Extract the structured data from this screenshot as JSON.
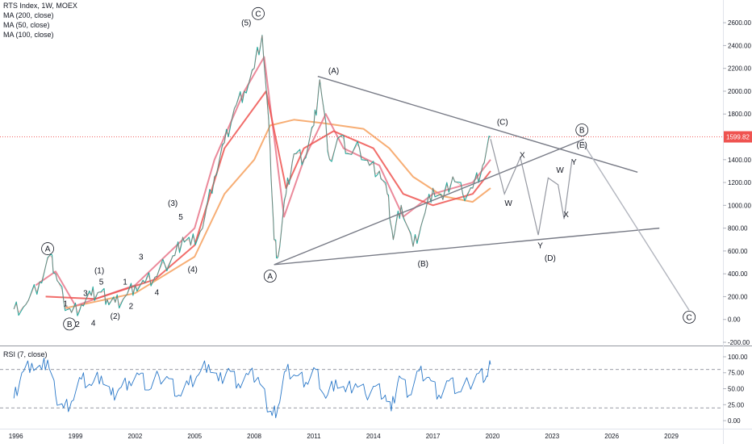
{
  "chart_data": [
    {
      "type": "line",
      "title": "RTS Index, 1W, MOEX",
      "indicators": [
        "MA (200, close)",
        "MA (50, close)",
        "MA (100, close)"
      ],
      "ylim": [
        -200,
        2700
      ],
      "y_ticks": [
        "2600.00",
        "2400.00",
        "2200.00",
        "2000.00",
        "1800.00",
        "1400.00",
        "1200.00",
        "1000.00",
        "800.00",
        "600.00",
        "400.00",
        "200.00",
        "0.00",
        "-200.00"
      ],
      "x_ticks": [
        "1996",
        "1999",
        "2002",
        "2005",
        "2008",
        "2011",
        "2014",
        "2017",
        "2020",
        "2023",
        "2026",
        "2029"
      ],
      "xlim": [
        1995.2,
        2031.6
      ],
      "current_price": "1599.82",
      "price_line_color": "#ef5350",
      "price_series": [
        [
          1995.9,
          90
        ],
        [
          1996.5,
          130
        ],
        [
          1997.2,
          330
        ],
        [
          1997.7,
          560
        ],
        [
          1998.0,
          400
        ],
        [
          1998.4,
          170
        ],
        [
          1998.8,
          60
        ],
        [
          1999.3,
          130
        ],
        [
          1999.8,
          210
        ],
        [
          2000.2,
          240
        ],
        [
          2000.6,
          175
        ],
        [
          2001.0,
          150
        ],
        [
          2001.5,
          200
        ],
        [
          2002.0,
          300
        ],
        [
          2002.5,
          320
        ],
        [
          2003.0,
          370
        ],
        [
          2003.5,
          480
        ],
        [
          2004.0,
          560
        ],
        [
          2004.4,
          720
        ],
        [
          2004.8,
          650
        ],
        [
          2005.4,
          800
        ],
        [
          2006.0,
          1250
        ],
        [
          2006.5,
          1550
        ],
        [
          2007.0,
          1850
        ],
        [
          2007.5,
          2000
        ],
        [
          2008.0,
          2200
        ],
        [
          2008.4,
          2490
        ],
        [
          2008.8,
          1500
        ],
        [
          2009.0,
          700
        ],
        [
          2009.2,
          550
        ],
        [
          2009.6,
          1100
        ],
        [
          2010.0,
          1450
        ],
        [
          2010.5,
          1400
        ],
        [
          2011.0,
          1700
        ],
        [
          2011.3,
          2100
        ],
        [
          2011.8,
          1400
        ],
        [
          2012.3,
          1600
        ],
        [
          2012.8,
          1450
        ],
        [
          2013.3,
          1500
        ],
        [
          2013.8,
          1350
        ],
        [
          2014.3,
          1300
        ],
        [
          2014.7,
          1100
        ],
        [
          2015.0,
          700
        ],
        [
          2015.4,
          1000
        ],
        [
          2016.0,
          640
        ],
        [
          2016.5,
          880
        ],
        [
          2017.0,
          1150
        ],
        [
          2017.5,
          1050
        ],
        [
          2018.0,
          1250
        ],
        [
          2018.5,
          1100
        ],
        [
          2019.0,
          1150
        ],
        [
          2019.5,
          1350
        ],
        [
          2019.9,
          1600
        ]
      ],
      "ma_series": [
        {
          "name": "MA (200, close)",
          "color": "#f6a05d",
          "values": [
            [
              1998.5,
              100
            ],
            [
              2002.0,
              230
            ],
            [
              2005.0,
              550
            ],
            [
              2006.5,
              1100
            ],
            [
              2008.0,
              1400
            ],
            [
              2008.8,
              1700
            ],
            [
              2010.0,
              1750
            ],
            [
              2011.5,
              1720
            ],
            [
              2013.5,
              1670
            ],
            [
              2014.8,
              1500
            ],
            [
              2016.0,
              1250
            ],
            [
              2017.5,
              1080
            ],
            [
              2019.0,
              1030
            ],
            [
              2019.9,
              1150
            ]
          ]
        },
        {
          "name": "MA (50, close)",
          "color": "#e8768a",
          "values": [
            [
              1997.0,
              300
            ],
            [
              1998.0,
              420
            ],
            [
              1999.0,
              120
            ],
            [
              2002.0,
              300
            ],
            [
              2005.0,
              800
            ],
            [
              2006.0,
              1400
            ],
            [
              2007.5,
              2000
            ],
            [
              2008.5,
              2300
            ],
            [
              2009.5,
              900
            ],
            [
              2010.5,
              1400
            ],
            [
              2011.6,
              1800
            ],
            [
              2012.5,
              1500
            ],
            [
              2014.3,
              1350
            ],
            [
              2015.5,
              900
            ],
            [
              2017.0,
              1100
            ],
            [
              2019.0,
              1200
            ],
            [
              2019.9,
              1400
            ]
          ]
        },
        {
          "name": "MA (100, close)",
          "color": "#ef5350",
          "values": [
            [
              1997.5,
              200
            ],
            [
              2000.0,
              180
            ],
            [
              2003.0,
              350
            ],
            [
              2005.0,
              650
            ],
            [
              2006.5,
              1500
            ],
            [
              2008.6,
              2000
            ],
            [
              2009.6,
              1150
            ],
            [
              2010.5,
              1500
            ],
            [
              2012.0,
              1650
            ],
            [
              2014.0,
              1500
            ],
            [
              2015.5,
              1100
            ],
            [
              2017.0,
              1000
            ],
            [
              2019.0,
              1100
            ],
            [
              2019.9,
              1300
            ]
          ]
        }
      ],
      "trendlines": [
        {
          "color": "#787b86",
          "from": [
            2011.2,
            2130
          ],
          "to": [
            2027.3,
            1290
          ]
        },
        {
          "color": "#787b86",
          "from": [
            2009.0,
            480
          ],
          "to": [
            2028.4,
            800
          ]
        },
        {
          "color": "#787b86",
          "from": [
            2009.0,
            480
          ],
          "to": [
            2024.6,
            1580
          ]
        },
        {
          "color": "#b2b5be",
          "from": [
            2024.5,
            1560
          ],
          "to": [
            2029.9,
            80
          ]
        }
      ],
      "forecast_path": [
        [
          2019.9,
          1580
        ],
        [
          2020.6,
          1100
        ],
        [
          2021.4,
          1420
        ],
        [
          2022.3,
          740
        ],
        [
          2022.8,
          1240
        ],
        [
          2023.3,
          1180
        ],
        [
          2023.6,
          880
        ],
        [
          2024.0,
          1400
        ]
      ],
      "annotations": [
        {
          "text": "C",
          "x": 2008.2,
          "y": 2680,
          "circled": true
        },
        {
          "text": "(5)",
          "x": 2007.6,
          "y": 2600
        },
        {
          "text": "(A)",
          "x": 2012.0,
          "y": 2180
        },
        {
          "text": "(C)",
          "x": 2020.5,
          "y": 1730
        },
        {
          "text": "B",
          "x": 2024.5,
          "y": 1660,
          "circled": true
        },
        {
          "text": "(E)",
          "x": 2024.5,
          "y": 1530
        },
        {
          "text": "X",
          "x": 2021.5,
          "y": 1440
        },
        {
          "text": "W",
          "x": 2023.4,
          "y": 1310
        },
        {
          "text": "Y",
          "x": 2024.1,
          "y": 1380
        },
        {
          "text": "W",
          "x": 2020.8,
          "y": 1020
        },
        {
          "text": "X",
          "x": 2023.7,
          "y": 920
        },
        {
          "text": "Y",
          "x": 2022.4,
          "y": 650
        },
        {
          "text": "(D)",
          "x": 2022.9,
          "y": 540
        },
        {
          "text": "(B)",
          "x": 2016.5,
          "y": 490
        },
        {
          "text": "A",
          "x": 2008.8,
          "y": 380,
          "circled": true
        },
        {
          "text": "C",
          "x": 2029.9,
          "y": 20,
          "circled": true
        },
        {
          "text": "A",
          "x": 1997.6,
          "y": 620,
          "circled": true
        },
        {
          "text": "B",
          "x": 1998.7,
          "y": -40,
          "circled": true
        },
        {
          "text": "(3)",
          "x": 2003.9,
          "y": 1020
        },
        {
          "text": "5",
          "x": 2004.3,
          "y": 900
        },
        {
          "text": "(4)",
          "x": 2004.9,
          "y": 440
        },
        {
          "text": "(1)",
          "x": 2000.2,
          "y": 430
        },
        {
          "text": "5",
          "x": 2000.3,
          "y": 330
        },
        {
          "text": "3",
          "x": 1999.5,
          "y": 230
        },
        {
          "text": "3",
          "x": 2002.3,
          "y": 550
        },
        {
          "text": "1",
          "x": 1998.5,
          "y": 140
        },
        {
          "text": "1",
          "x": 2001.5,
          "y": 330
        },
        {
          "text": "4",
          "x": 2003.1,
          "y": 240
        },
        {
          "text": "2",
          "x": 1999.1,
          "y": -40
        },
        {
          "text": "4",
          "x": 1999.9,
          "y": -30
        },
        {
          "text": "(2)",
          "x": 2001.0,
          "y": 30
        },
        {
          "text": "2",
          "x": 2001.8,
          "y": 120
        }
      ]
    },
    {
      "type": "line",
      "title": "RSI (7, close)",
      "ylim": [
        -10,
        105
      ],
      "y_ticks": [
        "100.00",
        "75.00",
        "50.00",
        "25.00",
        "0.00"
      ],
      "levels": [
        80,
        20
      ],
      "color": "#2a78c8",
      "values": [
        [
          1995.9,
          35
        ],
        [
          1996.3,
          75
        ],
        [
          1996.8,
          90
        ],
        [
          1997.3,
          80
        ],
        [
          1997.6,
          95
        ],
        [
          1998.0,
          40
        ],
        [
          1998.4,
          20
        ],
        [
          1998.8,
          30
        ],
        [
          1999.3,
          65
        ],
        [
          1999.8,
          55
        ],
        [
          2000.3,
          70
        ],
        [
          2000.8,
          40
        ],
        [
          2001.2,
          50
        ],
        [
          2001.7,
          62
        ],
        [
          2002.2,
          72
        ],
        [
          2002.7,
          48
        ],
        [
          2003.2,
          70
        ],
        [
          2003.7,
          66
        ],
        [
          2004.2,
          40
        ],
        [
          2004.7,
          56
        ],
        [
          2005.2,
          72
        ],
        [
          2005.7,
          88
        ],
        [
          2006.2,
          62
        ],
        [
          2006.7,
          82
        ],
        [
          2007.2,
          58
        ],
        [
          2007.7,
          72
        ],
        [
          2008.2,
          68
        ],
        [
          2008.6,
          30
        ],
        [
          2008.9,
          8
        ],
        [
          2009.2,
          22
        ],
        [
          2009.6,
          78
        ],
        [
          2010.1,
          70
        ],
        [
          2010.6,
          60
        ],
        [
          2011.1,
          80
        ],
        [
          2011.6,
          35
        ],
        [
          2012.1,
          64
        ],
        [
          2012.6,
          45
        ],
        [
          2013.1,
          58
        ],
        [
          2013.6,
          42
        ],
        [
          2014.1,
          54
        ],
        [
          2014.6,
          40
        ],
        [
          2014.9,
          15
        ],
        [
          2015.3,
          70
        ],
        [
          2015.8,
          40
        ],
        [
          2016.3,
          78
        ],
        [
          2016.8,
          68
        ],
        [
          2017.3,
          40
        ],
        [
          2017.8,
          62
        ],
        [
          2018.3,
          45
        ],
        [
          2018.8,
          58
        ],
        [
          2019.3,
          74
        ],
        [
          2019.7,
          70
        ],
        [
          2019.9,
          88
        ]
      ]
    }
  ]
}
